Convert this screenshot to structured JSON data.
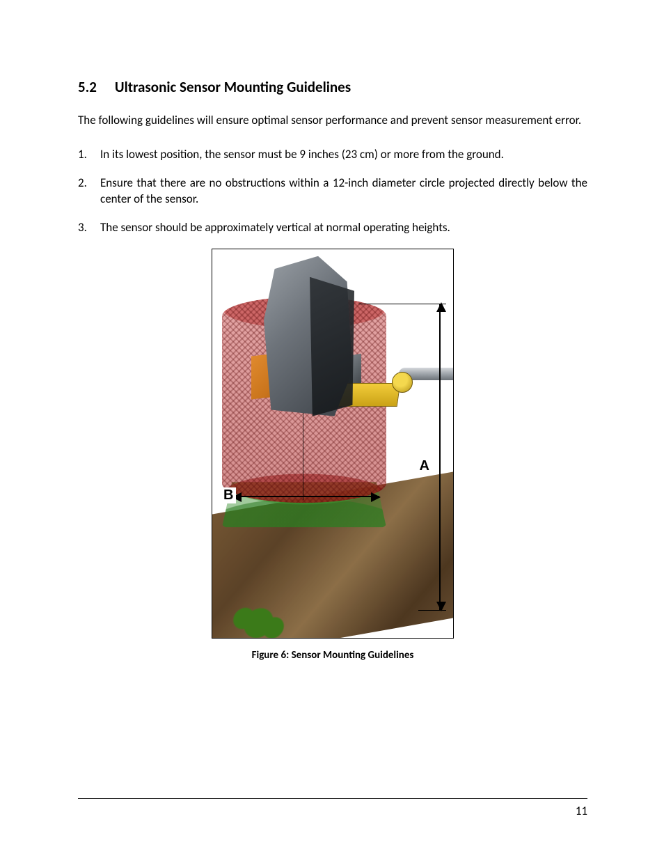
{
  "section": {
    "number": "5.2",
    "title": "Ultrasonic Sensor Mounting Guidelines"
  },
  "intro": "The following guidelines will ensure optimal sensor performance and prevent sensor measurement error.",
  "list": [
    "In its lowest position, the sensor must be 9 inches (23 cm) or more from the ground.",
    "Ensure that there are no obstructions within a 12-inch diameter circle projected directly below the center of the sensor.",
    "The sensor should be approximately vertical at normal operating heights."
  ],
  "figure": {
    "caption": "Figure 6: Sensor Mounting Guidelines",
    "labels": {
      "A": "A",
      "B": "B"
    },
    "colors": {
      "red_cylinder": "#b82828",
      "green_cone": "#3e963e",
      "orange_block": "#d97c20",
      "yellow_bracket": "#e6bd28",
      "body_grey": "#6d737a",
      "pipe_grey": "#9ea4aa",
      "ground": "#6e5538",
      "plant": "#3e7a1e"
    }
  },
  "page_number": "11"
}
